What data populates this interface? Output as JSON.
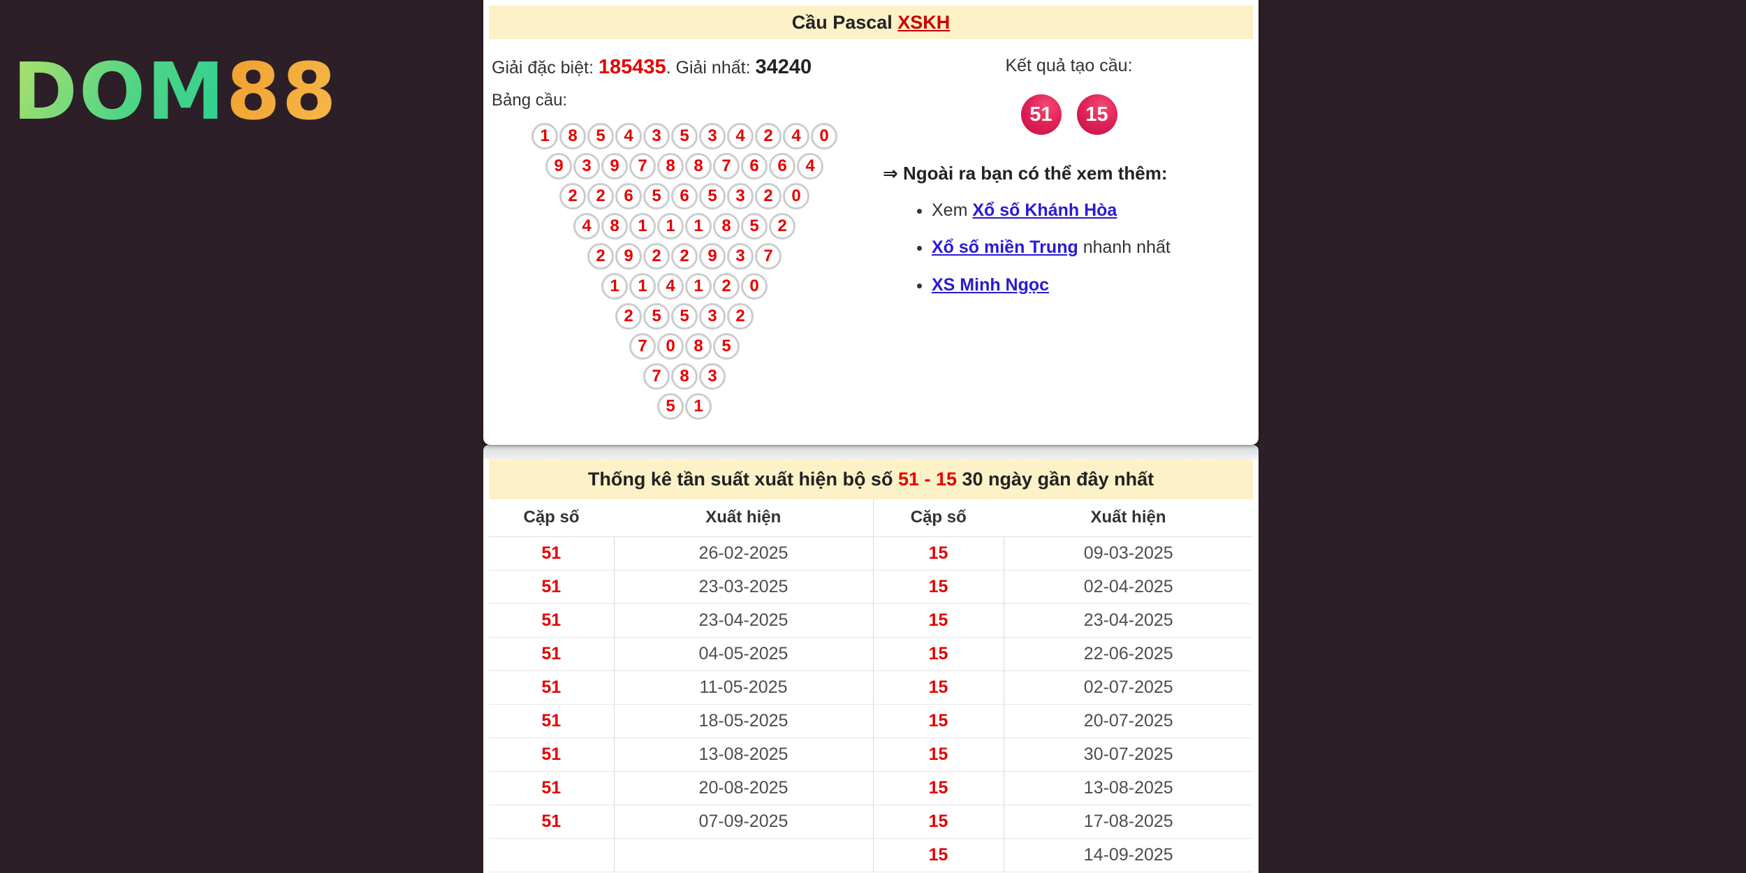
{
  "logo": {
    "green": "DOM",
    "orange": "88"
  },
  "colors": {
    "page_bg": "#2c1f27",
    "band_yellow": "#fcf1c7",
    "accent_red": "#e30000",
    "link_red": "#cc0000",
    "link_blue": "#2a1ad2",
    "ball_pink": "#d81b4d",
    "logo_green": "#4fd586",
    "logo_orange": "#f2a93c"
  },
  "panel1": {
    "title_prefix": "Cầu Pascal ",
    "title_link": "XSKH",
    "prize": {
      "special_label": "Giải đặc biệt: ",
      "special_value": "185435",
      "first_label": ". Giải nhất: ",
      "first_value": "34240"
    },
    "bang_cau_label": "Bảng cầu:",
    "triangle": [
      [
        1,
        8,
        5,
        4,
        3,
        5,
        3,
        4,
        2,
        4,
        0
      ],
      [
        9,
        3,
        9,
        7,
        8,
        8,
        7,
        6,
        6,
        4
      ],
      [
        2,
        2,
        6,
        5,
        6,
        5,
        3,
        2,
        0
      ],
      [
        4,
        8,
        1,
        1,
        1,
        8,
        5,
        2
      ],
      [
        2,
        9,
        2,
        2,
        9,
        3,
        7
      ],
      [
        1,
        1,
        4,
        1,
        2,
        0
      ],
      [
        2,
        5,
        5,
        3,
        2
      ],
      [
        7,
        0,
        8,
        5
      ],
      [
        7,
        8,
        3
      ],
      [
        5,
        1
      ]
    ],
    "result_label": "Kết quả tạo cầu:",
    "result_balls": [
      "51",
      "15"
    ],
    "more_heading": "⇒ Ngoài ra bạn có thể xem thêm:",
    "more_items": [
      {
        "prefix": "Xem ",
        "link": "Xổ số Khánh Hòa",
        "suffix": ""
      },
      {
        "prefix": "",
        "link": "Xổ số miền Trung",
        "suffix": " nhanh nhất"
      },
      {
        "prefix": "",
        "link": "XS Minh Ngọc",
        "suffix": ""
      }
    ]
  },
  "panel2": {
    "title_prefix": "Thống kê tần suất xuất hiện bộ số ",
    "title_pair": "51 - 15",
    "title_suffix": " 30 ngày gần đây nhất",
    "table": {
      "headers": [
        "Cặp số",
        "Xuất hiện",
        "Cặp số",
        "Xuất hiện"
      ],
      "rows": [
        [
          "51",
          "26-02-2025",
          "15",
          "09-03-2025"
        ],
        [
          "51",
          "23-03-2025",
          "15",
          "02-04-2025"
        ],
        [
          "51",
          "23-04-2025",
          "15",
          "23-04-2025"
        ],
        [
          "51",
          "04-05-2025",
          "15",
          "22-06-2025"
        ],
        [
          "51",
          "11-05-2025",
          "15",
          "02-07-2025"
        ],
        [
          "51",
          "18-05-2025",
          "15",
          "20-07-2025"
        ],
        [
          "51",
          "13-08-2025",
          "15",
          "30-07-2025"
        ],
        [
          "51",
          "20-08-2025",
          "15",
          "13-08-2025"
        ],
        [
          "51",
          "07-09-2025",
          "15",
          "17-08-2025"
        ],
        [
          "",
          "",
          "15",
          "14-09-2025"
        ]
      ]
    }
  }
}
